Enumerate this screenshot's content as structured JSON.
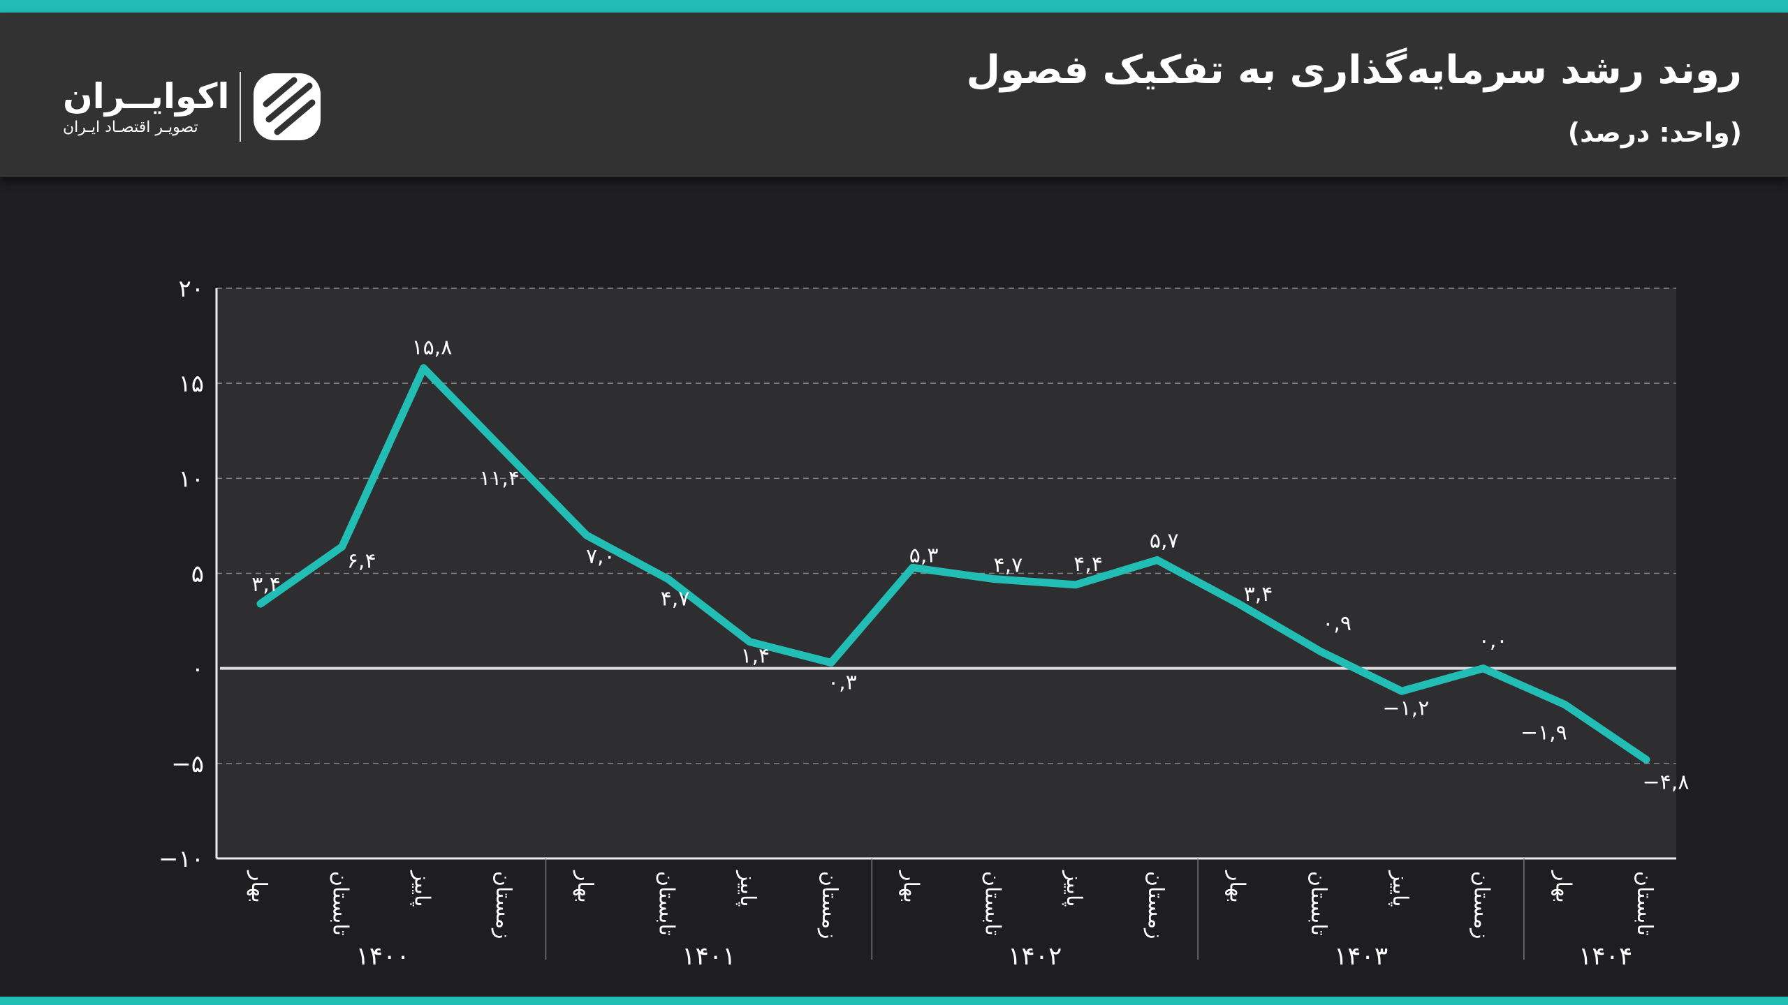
{
  "header": {
    "title": "روند رشد سرمایه‌گذاری به تفکیک فصول",
    "subtitle": "(واحد: درصد)",
    "logo_name": "اکوایــران",
    "logo_tagline": "تصویـر اقتصـاد ایـران"
  },
  "colors": {
    "line": "#22bdb5",
    "accent_bar": "#22bdb5",
    "background": "#1e1d1f",
    "plot_bg": "#2e2d2f"
  },
  "chart_data": {
    "type": "line",
    "title": "روند رشد سرمایه‌گذاری به تفکیک فصول",
    "subtitle": "(واحد: درصد)",
    "ylim": [
      -10,
      20
    ],
    "yticks": [
      -10,
      -5,
      0,
      5,
      10,
      15,
      20
    ],
    "ytick_labels": [
      "−۱۰",
      "−۵",
      "۰",
      "۵",
      "۱۰",
      "۱۵",
      "۲۰"
    ],
    "grid": true,
    "groups": [
      {
        "year": "۱۴۰۰",
        "seasons": [
          "بهار",
          "تابستان",
          "پاییز",
          "زمستان"
        ]
      },
      {
        "year": "۱۴۰۱",
        "seasons": [
          "بهار",
          "تابستان",
          "پاییز",
          "زمستان"
        ]
      },
      {
        "year": "۱۴۰۲",
        "seasons": [
          "بهار",
          "تابستان",
          "پاییز",
          "زمستان"
        ]
      },
      {
        "year": "۱۴۰۳",
        "seasons": [
          "بهار",
          "تابستان",
          "پاییز",
          "زمستان"
        ]
      },
      {
        "year": "۱۴۰۴",
        "seasons": [
          "بهار",
          "تابستان"
        ]
      }
    ],
    "series": [
      {
        "name": "رشد سرمایه‌گذاری",
        "values": [
          3.4,
          6.4,
          15.8,
          11.4,
          7.0,
          4.7,
          1.4,
          0.3,
          5.3,
          4.7,
          4.4,
          5.7,
          3.4,
          0.9,
          -1.2,
          0.0,
          -1.9,
          -4.8
        ],
        "labels": [
          "۳,۴",
          "۶,۴",
          "۱۵,۸",
          "۱۱,۴",
          "۷,۰",
          "۴,۷",
          "۱,۴",
          "۰,۳",
          "۵,۳",
          "۴,۷",
          "۴,۴",
          "۵,۷",
          "۳,۴",
          "۰,۹",
          "−۱,۲",
          "۰,۰",
          "−۱,۹",
          "−۴,۸"
        ]
      }
    ]
  }
}
